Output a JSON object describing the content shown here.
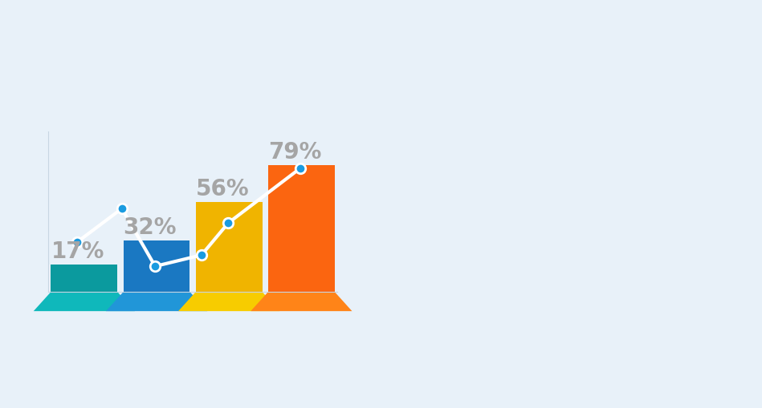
{
  "chart_data": {
    "type": "bar",
    "categories": [
      null,
      null,
      null,
      null
    ],
    "values": [
      17,
      32,
      56,
      79
    ],
    "value_labels": [
      "17%",
      "32%",
      "56%",
      "79%"
    ],
    "colors": [
      "#0b9a9e",
      "#1a78c2",
      "#f0b400",
      "#fb6510"
    ],
    "data_labels": true,
    "tick_labels": false,
    "grid": false,
    "ylim": [
      0,
      100
    ],
    "line": {
      "type": "line",
      "x": [
        -0.1,
        0.52,
        0.98,
        1.62,
        1.99,
        2.98
      ],
      "values": [
        31,
        52,
        16,
        23,
        43,
        77
      ],
      "color": "#ffffff",
      "marker": "o"
    }
  }
}
